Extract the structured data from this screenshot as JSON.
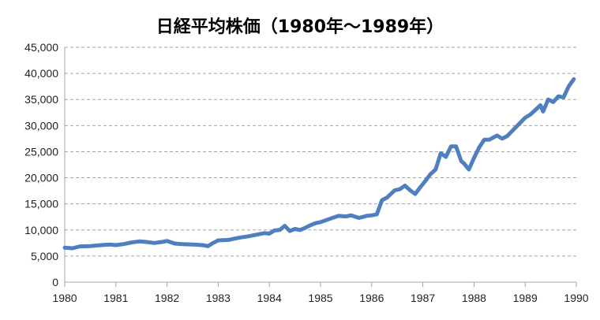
{
  "chart_data": {
    "type": "line",
    "title": "日経平均株価（1980年～1989年）",
    "xlabel": "",
    "ylabel": "",
    "xlim": [
      1980,
      1990
    ],
    "ylim": [
      0,
      45000
    ],
    "x_ticks": [
      "1980",
      "1981",
      "1982",
      "1983",
      "1984",
      "1985",
      "1986",
      "1987",
      "1988",
      "1989",
      "1990"
    ],
    "y_ticks": [
      "0",
      "5,000",
      "10,000",
      "15,000",
      "20,000",
      "25,000",
      "30,000",
      "35,000",
      "40,000",
      "45,000"
    ],
    "grid": true,
    "legend": "none",
    "colors": {
      "line": "#4F7FBF",
      "grid": "#A6A6A6",
      "axis": "#A6A6A6"
    },
    "series": [
      {
        "x": [
          1980.0,
          1980.15,
          1980.3,
          1980.5,
          1980.7,
          1980.9,
          1981.0,
          1981.15,
          1981.3,
          1981.45,
          1981.6,
          1981.75,
          1981.9,
          1982.0,
          1982.15,
          1982.3,
          1982.5,
          1982.7,
          1982.8,
          1982.9,
          1983.0,
          1983.2,
          1983.4,
          1983.6,
          1983.75,
          1983.9,
          1984.0,
          1984.1,
          1984.2,
          1984.3,
          1984.4,
          1984.5,
          1984.6,
          1984.7,
          1984.8,
          1984.9,
          1985.0,
          1985.2,
          1985.35,
          1985.5,
          1985.6,
          1985.75,
          1985.9,
          1986.0,
          1986.1,
          1986.2,
          1986.3,
          1986.45,
          1986.55,
          1986.65,
          1986.75,
          1986.85,
          1986.95,
          1987.05,
          1987.15,
          1987.25,
          1987.35,
          1987.45,
          1987.55,
          1987.65,
          1987.75,
          1987.8,
          1987.9,
          1988.0,
          1988.1,
          1988.2,
          1988.3,
          1988.45,
          1988.55,
          1988.65,
          1988.8,
          1988.9,
          1989.0,
          1989.1,
          1989.2,
          1989.3,
          1989.35,
          1989.45,
          1989.55,
          1989.65,
          1989.75,
          1989.85,
          1989.95
        ],
        "values": [
          6600,
          6500,
          6850,
          6900,
          7100,
          7200,
          7100,
          7300,
          7600,
          7800,
          7700,
          7500,
          7700,
          7900,
          7400,
          7300,
          7200,
          7100,
          6900,
          7500,
          8000,
          8100,
          8500,
          8800,
          9100,
          9400,
          9300,
          9900,
          10000,
          10800,
          9800,
          10200,
          10000,
          10400,
          10900,
          11300,
          11500,
          12200,
          12700,
          12600,
          12800,
          12300,
          12700,
          12800,
          13000,
          15700,
          16200,
          17600,
          17800,
          18500,
          17600,
          16900,
          18200,
          19400,
          20700,
          21600,
          24700,
          24000,
          26000,
          26000,
          23200,
          22800,
          21600,
          23800,
          25800,
          27300,
          27300,
          28100,
          27500,
          28000,
          29500,
          30500,
          31500,
          32100,
          33000,
          33900,
          32700,
          35000,
          34500,
          35600,
          35400,
          37500,
          38900
        ]
      }
    ]
  }
}
